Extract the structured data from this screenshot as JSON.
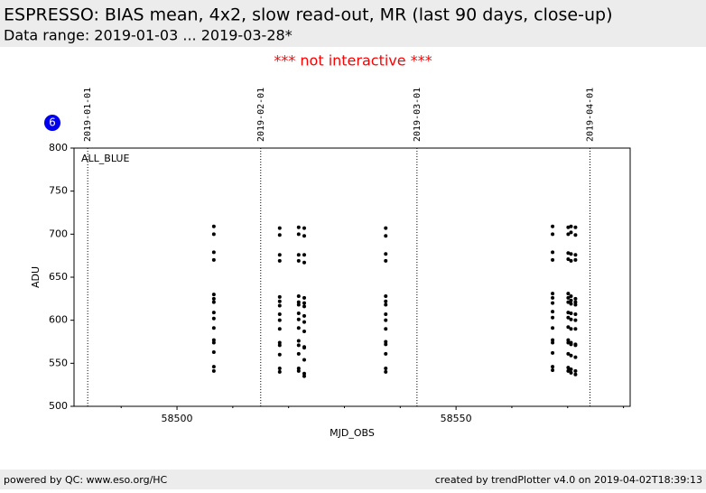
{
  "chart_data": {
    "type": "scatter",
    "title": "ESPRESSO: BIAS mean, 4x2, slow read-out, MR (last 90 days, close-up)",
    "subtitle": "Data range: 2019-01-03 ... 2019-03-28*",
    "notice": "*** not interactive ***",
    "badge": "6",
    "panel_label": "ALL_BLUE",
    "x_label": "MJD_OBS",
    "y_label": "ADU",
    "xlim": [
      58481.55,
      58581.2
    ],
    "ylim": [
      500,
      800
    ],
    "xticks": [
      58500,
      58550
    ],
    "xminorticks": [
      58490,
      58510,
      58520,
      58530,
      58540,
      58560,
      58570,
      58580
    ],
    "yticks": [
      500,
      550,
      600,
      650,
      700,
      750,
      800
    ],
    "date_markers": [
      {
        "value": 58484,
        "label": "2019-01-01"
      },
      {
        "value": 58515,
        "label": "2019-02-01"
      },
      {
        "value": 58543,
        "label": "2019-03-01"
      },
      {
        "value": 58574,
        "label": "2019-04-01"
      }
    ],
    "color": "#000000",
    "x": [
      58506.6,
      58506.6,
      58506.6,
      58506.6,
      58506.6,
      58506.6,
      58506.6,
      58506.6,
      58506.6,
      58506.6,
      58506.6,
      58506.6,
      58506.6,
      58506.6,
      58506.6,
      58518.4,
      58518.4,
      58518.4,
      58518.4,
      58518.4,
      58518.4,
      58518.4,
      58518.4,
      58518.4,
      58518.4,
      58518.4,
      58518.4,
      58518.4,
      58518.4,
      58518.4,
      58521.8,
      58521.8,
      58521.8,
      58521.8,
      58521.8,
      58521.8,
      58521.8,
      58521.8,
      58521.8,
      58521.8,
      58521.8,
      58521.8,
      58521.8,
      58521.8,
      58521.8,
      58522.8,
      58522.8,
      58522.8,
      58522.8,
      58522.8,
      58522.8,
      58522.8,
      58522.8,
      58522.8,
      58522.8,
      58522.8,
      58522.8,
      58522.8,
      58522.8,
      58522.8,
      58537.4,
      58537.4,
      58537.4,
      58537.4,
      58537.4,
      58537.4,
      58537.4,
      58537.4,
      58537.4,
      58537.4,
      58537.4,
      58537.4,
      58537.4,
      58537.4,
      58537.4,
      58567.3,
      58567.3,
      58567.3,
      58567.3,
      58567.3,
      58567.3,
      58567.3,
      58567.3,
      58567.3,
      58567.3,
      58567.3,
      58567.3,
      58567.3,
      58567.3,
      58567.3,
      58570.1,
      58570.1,
      58570.1,
      58570.1,
      58570.1,
      58570.1,
      58570.1,
      58570.1,
      58570.1,
      58570.1,
      58570.1,
      58570.1,
      58570.1,
      58570.1,
      58570.1,
      58570.6,
      58570.6,
      58570.6,
      58570.6,
      58570.6,
      58570.6,
      58570.6,
      58570.6,
      58570.6,
      58570.6,
      58570.6,
      58570.6,
      58570.6,
      58570.6,
      58570.6,
      58571.4,
      58571.4,
      58571.4,
      58571.4,
      58571.4,
      58571.4,
      58571.4,
      58571.4,
      58571.4,
      58571.4,
      58571.4,
      58571.4,
      58571.4,
      58571.4,
      58571.4
    ],
    "values": [
      709,
      700,
      679,
      670,
      630,
      625,
      621,
      609,
      602,
      591,
      577,
      574,
      563,
      546,
      541,
      707,
      699,
      676,
      669,
      627,
      622,
      617,
      607,
      600,
      590,
      574,
      571,
      560,
      544,
      540,
      708,
      700,
      676,
      669,
      628,
      621,
      618,
      608,
      601,
      591,
      576,
      571,
      561,
      544,
      541,
      707,
      698,
      676,
      667,
      626,
      620,
      616,
      605,
      598,
      587,
      569,
      568,
      554,
      538,
      535,
      707,
      698,
      677,
      669,
      628,
      622,
      618,
      607,
      600,
      590,
      575,
      572,
      561,
      544,
      540,
      709,
      700,
      679,
      670,
      631,
      626,
      620,
      610,
      603,
      591,
      577,
      574,
      562,
      546,
      542,
      708,
      700,
      678,
      671,
      631,
      626,
      621,
      609,
      603,
      592,
      577,
      574,
      561,
      545,
      541,
      709,
      702,
      677,
      669,
      628,
      623,
      619,
      608,
      601,
      590,
      574,
      572,
      559,
      543,
      539,
      708,
      699,
      676,
      670,
      625,
      621,
      618,
      607,
      600,
      590,
      572,
      571,
      557,
      541,
      537
    ]
  },
  "footer": {
    "left": "powered by QC: www.eso.org/HC",
    "right": "created by trendPlotter v4.0 on 2019-04-02T18:39:13"
  }
}
